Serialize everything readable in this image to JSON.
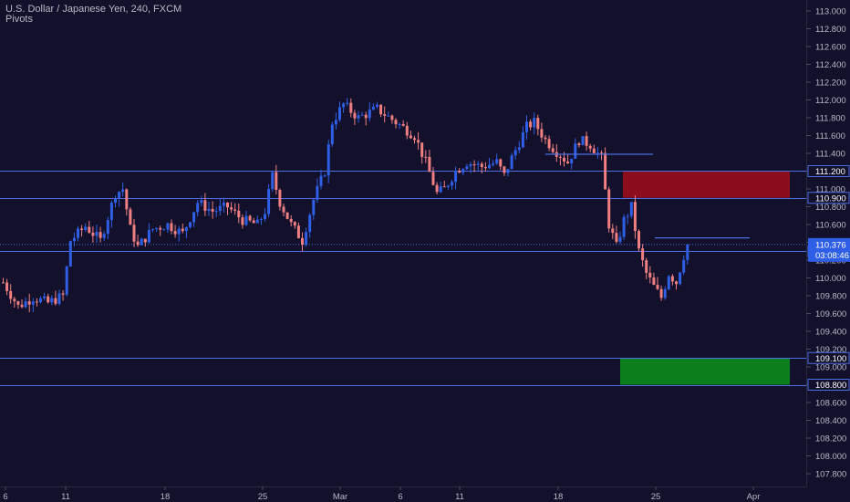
{
  "header": {
    "title": "U.S. Dollar / Japanese Yen, 240, FXCM",
    "indicator": "Pivots"
  },
  "colors": {
    "background": "#12102a",
    "up_candle": "#2f5fe6",
    "down_candle": "#f07f82",
    "level_line": "#4b6ee0",
    "resistance_zone": "#8c0e1c",
    "support_zone": "#0b7f1c",
    "axis_text": "#b8b9c6",
    "price_tag_bg": "#2f5fe6"
  },
  "chart_data": {
    "type": "candlestick",
    "title": "U.S. Dollar / Japanese Yen, 240, FXCM",
    "ylim": [
      107.6,
      113.1
    ],
    "y_ticks": [
      "113.000",
      "112.800",
      "112.600",
      "112.400",
      "112.200",
      "112.000",
      "111.800",
      "111.600",
      "111.400",
      "111.200",
      "111.000",
      "110.800",
      "110.600",
      "110.400",
      "110.200",
      "110.000",
      "109.800",
      "109.600",
      "109.400",
      "109.200",
      "109.000",
      "108.800",
      "108.600",
      "108.400",
      "108.200",
      "108.000",
      "107.800"
    ],
    "x_ticks": [
      "6",
      "11",
      "18",
      "25",
      "Mar",
      "6",
      "11",
      "18",
      "25",
      "Apr"
    ],
    "grid": false,
    "horizontal_levels": [
      111.2,
      110.9,
      110.3,
      109.1,
      108.8
    ],
    "zones": [
      {
        "kind": "resistance",
        "from": 110.9,
        "to": 111.2
      },
      {
        "kind": "support",
        "from": 108.8,
        "to": 109.1
      }
    ],
    "pivot_segments": [
      {
        "price": 111.39
      },
      {
        "price": 110.45
      }
    ],
    "current_price": {
      "value": "110.376",
      "countdown": "03:08:46"
    },
    "axis_labels_highlighted": [
      "111.200",
      "110.900",
      "110.300",
      "109.100",
      "108.800"
    ],
    "price_path": [
      {
        "t": 0,
        "p": 109.95
      },
      {
        "t": 4,
        "p": 109.68
      },
      {
        "t": 8,
        "p": 109.78
      },
      {
        "t": 12,
        "p": 109.72
      },
      {
        "t": 16,
        "p": 109.8
      },
      {
        "t": 18,
        "p": 110.42
      },
      {
        "t": 22,
        "p": 110.58
      },
      {
        "t": 26,
        "p": 110.42
      },
      {
        "t": 30,
        "p": 110.95
      },
      {
        "t": 32,
        "p": 111.0
      },
      {
        "t": 34,
        "p": 110.55
      },
      {
        "t": 36,
        "p": 110.35
      },
      {
        "t": 40,
        "p": 110.55
      },
      {
        "t": 44,
        "p": 110.6
      },
      {
        "t": 48,
        "p": 110.5
      },
      {
        "t": 52,
        "p": 110.85
      },
      {
        "t": 56,
        "p": 110.75
      },
      {
        "t": 60,
        "p": 110.8
      },
      {
        "t": 64,
        "p": 110.65
      },
      {
        "t": 68,
        "p": 110.6
      },
      {
        "t": 70,
        "p": 110.75
      },
      {
        "t": 72,
        "p": 111.15
      },
      {
        "t": 74,
        "p": 110.85
      },
      {
        "t": 77,
        "p": 110.6
      },
      {
        "t": 80,
        "p": 110.42
      },
      {
        "t": 83,
        "p": 110.88
      },
      {
        "t": 86,
        "p": 111.2
      },
      {
        "t": 88,
        "p": 111.75
      },
      {
        "t": 91,
        "p": 111.95
      },
      {
        "t": 95,
        "p": 111.8
      },
      {
        "t": 100,
        "p": 111.9
      },
      {
        "t": 105,
        "p": 111.75
      },
      {
        "t": 110,
        "p": 111.6
      },
      {
        "t": 113,
        "p": 111.3
      },
      {
        "t": 116,
        "p": 110.95
      },
      {
        "t": 118,
        "p": 111.0
      },
      {
        "t": 121,
        "p": 111.2
      },
      {
        "t": 124,
        "p": 111.3
      },
      {
        "t": 128,
        "p": 111.25
      },
      {
        "t": 132,
        "p": 111.3
      },
      {
        "t": 134,
        "p": 111.15
      },
      {
        "t": 136,
        "p": 111.35
      },
      {
        "t": 140,
        "p": 111.7
      },
      {
        "t": 142,
        "p": 111.75
      },
      {
        "t": 145,
        "p": 111.55
      },
      {
        "t": 148,
        "p": 111.42
      },
      {
        "t": 151,
        "p": 111.3
      },
      {
        "t": 154,
        "p": 111.55
      },
      {
        "t": 157,
        "p": 111.5
      },
      {
        "t": 160,
        "p": 111.35
      },
      {
        "t": 162,
        "p": 110.6
      },
      {
        "t": 164,
        "p": 110.35
      },
      {
        "t": 166,
        "p": 110.65
      },
      {
        "t": 168,
        "p": 110.8
      },
      {
        "t": 170,
        "p": 110.3
      },
      {
        "t": 172,
        "p": 110.05
      },
      {
        "t": 174,
        "p": 109.9
      },
      {
        "t": 176,
        "p": 109.78
      },
      {
        "t": 178,
        "p": 110.05
      },
      {
        "t": 180,
        "p": 109.95
      },
      {
        "t": 182,
        "p": 110.25
      },
      {
        "t": 183,
        "p": 110.376
      }
    ]
  }
}
